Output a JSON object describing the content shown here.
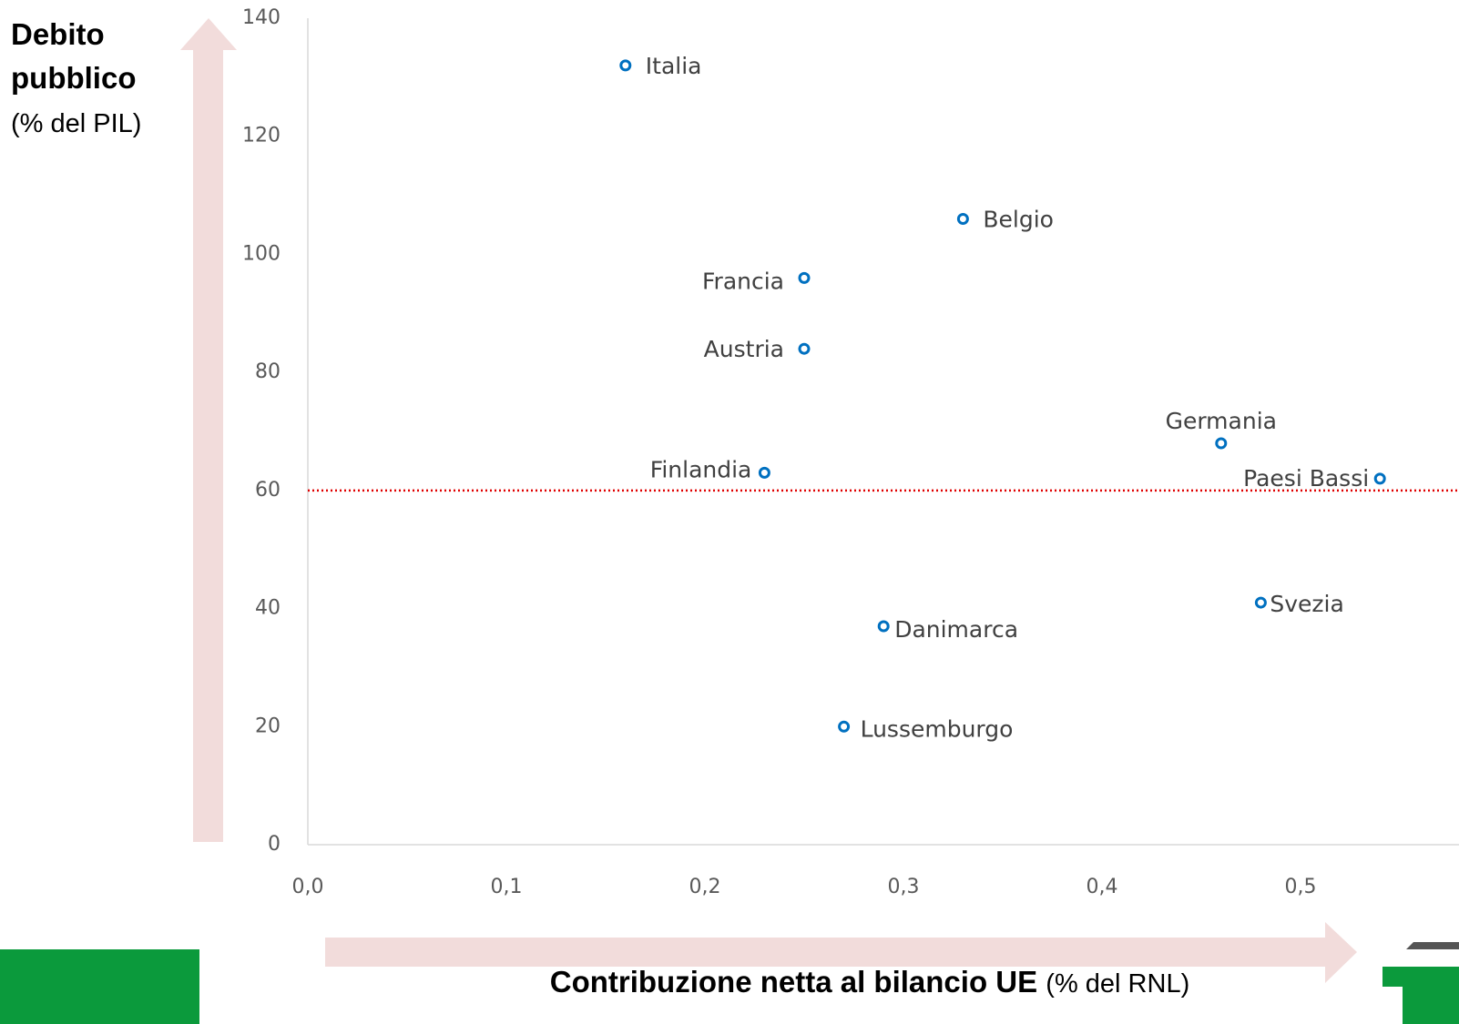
{
  "chart_data": {
    "type": "scatter",
    "y_label": "Debito pubblico",
    "y_label_unit": "(% del PIL)",
    "x_label": "Contribuzione netta al bilancio UE",
    "x_label_unit": "(% del RNL)",
    "labels": [
      "Italia",
      "Belgio",
      "Francia",
      "Austria",
      "Germania",
      "Finlandia",
      "Paesi Bassi",
      "Svezia",
      "Danimarca",
      "Lussemburgo"
    ],
    "x": [
      0.16,
      0.33,
      0.25,
      0.25,
      0.46,
      0.23,
      0.54,
      0.48,
      0.29,
      0.27
    ],
    "values": [
      132,
      106,
      96,
      84,
      68,
      63,
      62,
      41,
      37,
      20
    ],
    "color": "#0070c0",
    "xlim": [
      0,
      0.6
    ],
    "xticks": [
      {
        "value": 0,
        "label": "0,0"
      },
      {
        "value": 0.1,
        "label": "0,1"
      },
      {
        "value": 0.2,
        "label": "0,2"
      },
      {
        "value": 0.3,
        "label": "0,3"
      },
      {
        "value": 0.4,
        "label": "0,4"
      },
      {
        "value": 0.5,
        "label": "0,5"
      }
    ],
    "ylim": [
      0,
      140
    ],
    "yticks": [
      0,
      20,
      40,
      60,
      80,
      100,
      120,
      140
    ],
    "reference_line": {
      "value": 60,
      "color": "#e00000"
    }
  }
}
